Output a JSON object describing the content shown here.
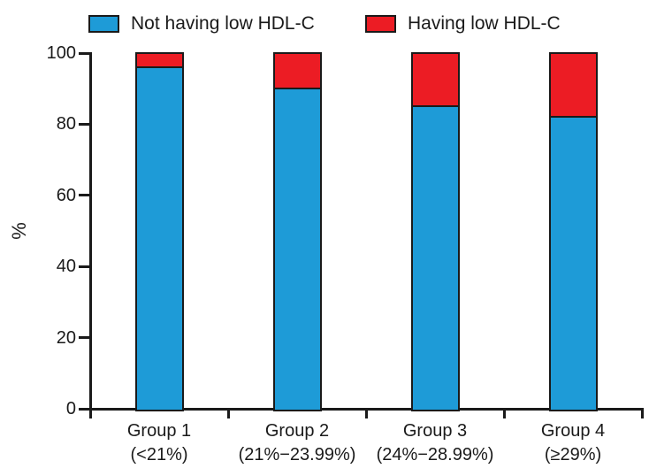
{
  "figure": {
    "description": "Stacked bar chart of low HDL-C prevalence by group"
  },
  "chart_data": {
    "type": "bar",
    "stacked": true,
    "title": "",
    "xlabel": "",
    "ylabel": "%",
    "ylim": [
      0,
      100
    ],
    "yticks": [
      0,
      20,
      40,
      60,
      80,
      100
    ],
    "grid": false,
    "legend_position": "top",
    "axis_color": "#1a1a1a",
    "categories": [
      "Group 1",
      "Group 2",
      "Group 3",
      "Group 4"
    ],
    "category_sublabels": [
      "(<21%)",
      "(21%−23.99%)",
      "(24%−28.99%)",
      "(≥29%)"
    ],
    "series": [
      {
        "name": "Not having low HDL-C",
        "color": "#1E9BD7",
        "values": [
          96,
          90,
          85,
          82
        ]
      },
      {
        "name": "Having low HDL-C",
        "color": "#EC1C24",
        "values": [
          4,
          10,
          15,
          18
        ]
      }
    ]
  }
}
